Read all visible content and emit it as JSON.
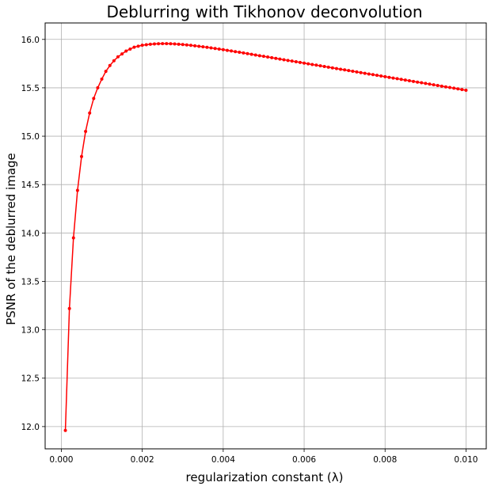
{
  "chart_data": {
    "type": "line",
    "title": "Deblurring with Tikhonov deconvolution",
    "xlabel": "regularization constant (λ)",
    "ylabel": "PSNR of the deblurred image",
    "xlim": [
      -0.0004,
      0.0105
    ],
    "ylim": [
      11.77,
      16.17
    ],
    "grid": true,
    "legend": "none",
    "x_ticks": [
      "0.000",
      "0.002",
      "0.004",
      "0.006",
      "0.008",
      "0.010"
    ],
    "y_ticks": [
      "12.0",
      "12.5",
      "13.0",
      "13.5",
      "14.0",
      "14.5",
      "15.0",
      "15.5",
      "16.0"
    ],
    "x_tick_values": [
      0.0,
      0.002,
      0.004,
      0.006,
      0.008,
      0.01
    ],
    "y_tick_values": [
      12.0,
      12.5,
      13.0,
      13.5,
      14.0,
      14.5,
      15.0,
      15.5,
      16.0
    ],
    "colors": {
      "series": "#ff0000",
      "grid": "#b0b0b0"
    },
    "series": [
      {
        "x_start": 0.0001,
        "x_step": 0.0001,
        "y": [
          11.96,
          13.22,
          13.95,
          14.44,
          14.79,
          15.05,
          15.24,
          15.39,
          15.5,
          15.59,
          15.67,
          15.73,
          15.78,
          15.82,
          15.85,
          15.88,
          15.9,
          15.92,
          15.93,
          15.94,
          15.945,
          15.95,
          15.953,
          15.955,
          15.956,
          15.956,
          15.955,
          15.953,
          15.95,
          15.947,
          15.943,
          15.939,
          15.934,
          15.929,
          15.924,
          15.918,
          15.912,
          15.906,
          15.9,
          15.894,
          15.887,
          15.881,
          15.874,
          15.867,
          15.86,
          15.853,
          15.846,
          15.839,
          15.832,
          15.825,
          15.818,
          15.811,
          15.804,
          15.797,
          15.79,
          15.783,
          15.776,
          15.769,
          15.762,
          15.755,
          15.748,
          15.741,
          15.734,
          15.727,
          15.72,
          15.713,
          15.706,
          15.699,
          15.692,
          15.685,
          15.678,
          15.671,
          15.664,
          15.657,
          15.65,
          15.643,
          15.636,
          15.629,
          15.622,
          15.615,
          15.608,
          15.601,
          15.594,
          15.587,
          15.58,
          15.573,
          15.566,
          15.559,
          15.552,
          15.545,
          15.538,
          15.531,
          15.524,
          15.517,
          15.51,
          15.503,
          15.496,
          15.489,
          15.482,
          15.475
        ]
      }
    ]
  }
}
